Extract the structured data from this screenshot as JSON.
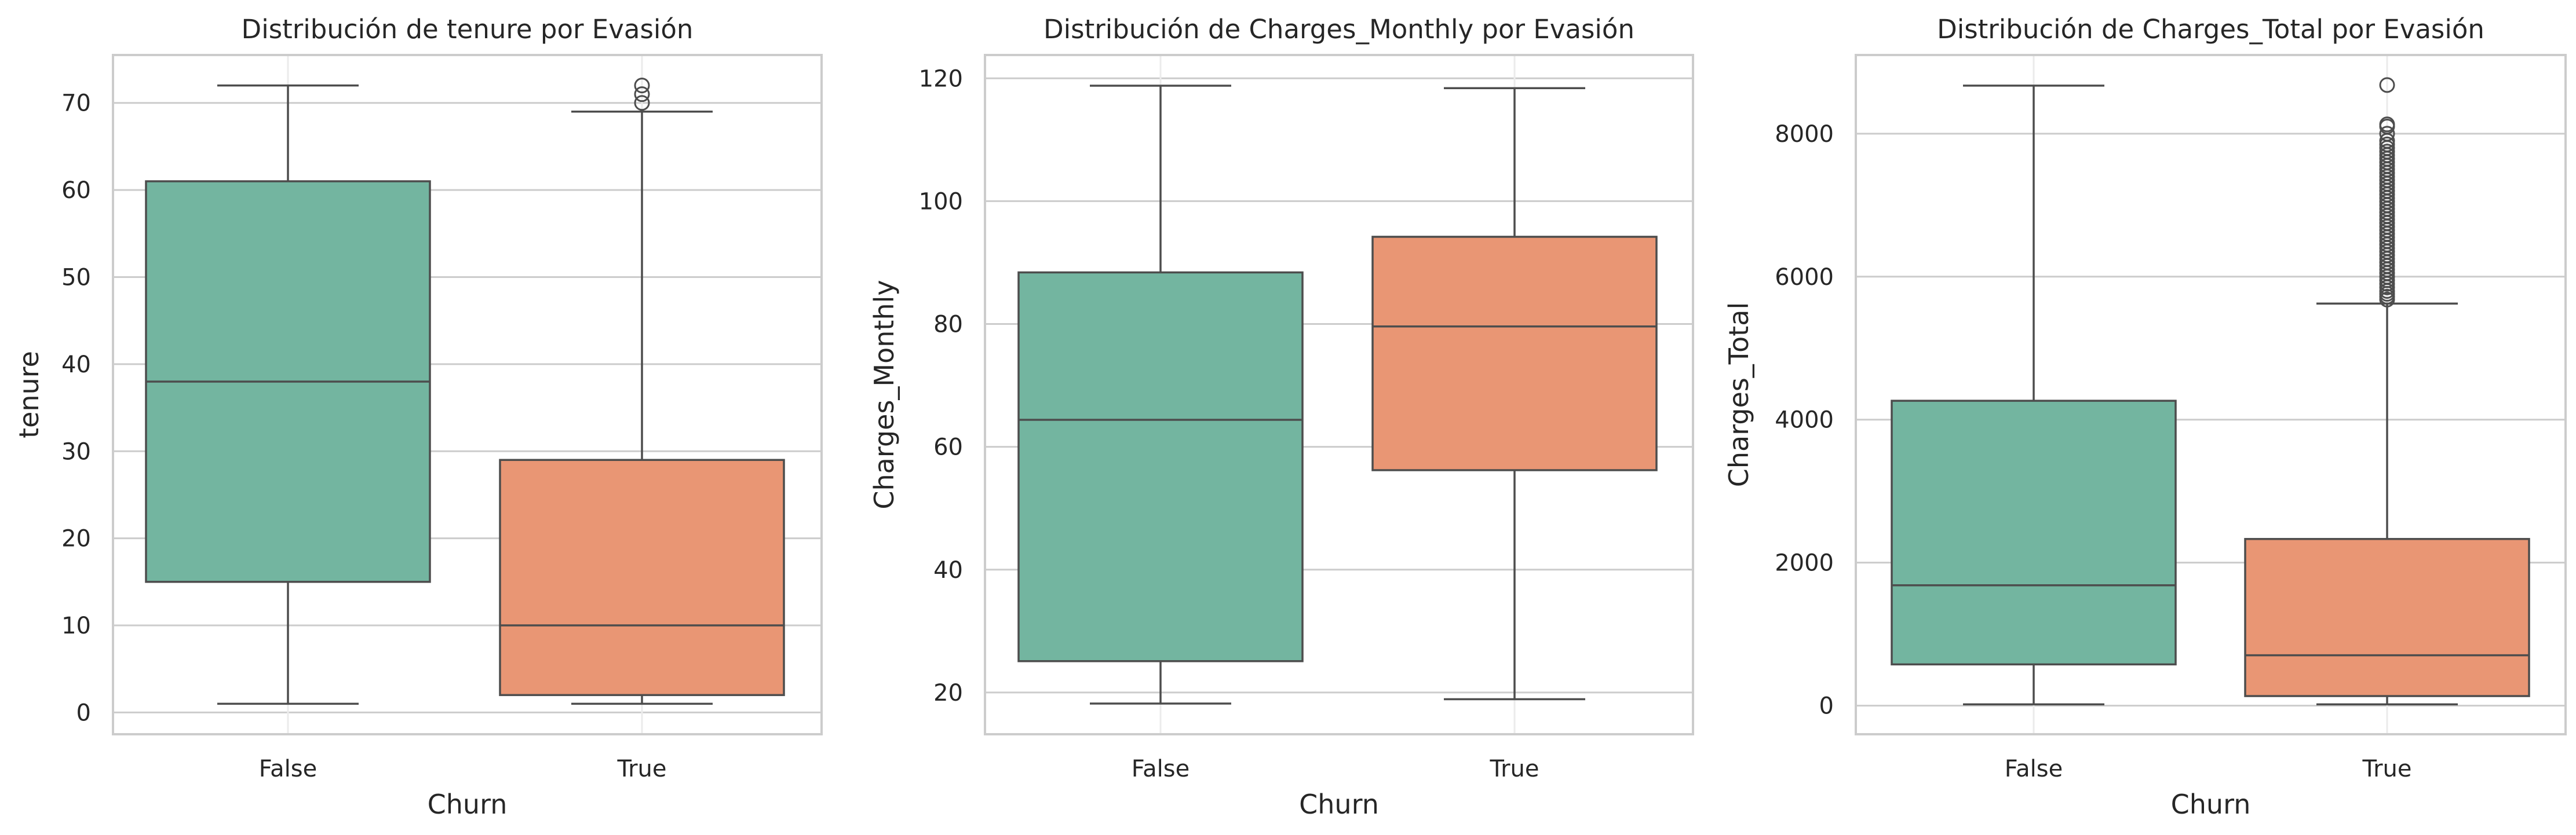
{
  "chart_data": [
    {
      "type": "boxplot",
      "title": "Distribución de tenure por Evasión",
      "xlabel": "Churn",
      "ylabel": "tenure",
      "categories": [
        "False",
        "True"
      ],
      "ylim": [
        -2.5,
        75.5
      ],
      "yticks": [
        0,
        10,
        20,
        30,
        40,
        50,
        60,
        70
      ],
      "grid": "y",
      "colors": [
        "#73b5a0",
        "#e99674"
      ],
      "boxes": [
        {
          "category": "False",
          "whisker_low": 1,
          "q1": 15,
          "median": 38,
          "q3": 61,
          "whisker_high": 72,
          "outliers": []
        },
        {
          "category": "True",
          "whisker_low": 1,
          "q1": 2,
          "median": 10,
          "q3": 29,
          "whisker_high": 69,
          "outliers": [
            70,
            71,
            72
          ]
        }
      ]
    },
    {
      "type": "boxplot",
      "title": "Distribución de Charges_Monthly por Evasión",
      "xlabel": "Churn",
      "ylabel": "Charges_Monthly",
      "categories": [
        "False",
        "True"
      ],
      "ylim": [
        13.2,
        123.8
      ],
      "yticks": [
        20,
        40,
        60,
        80,
        100,
        120
      ],
      "grid": "y",
      "colors": [
        "#73b5a0",
        "#e99674"
      ],
      "boxes": [
        {
          "category": "False",
          "whisker_low": 18.2,
          "q1": 25.1,
          "median": 64.4,
          "q3": 88.4,
          "whisker_high": 118.8,
          "outliers": []
        },
        {
          "category": "True",
          "whisker_low": 18.9,
          "q1": 56.2,
          "median": 79.6,
          "q3": 94.2,
          "whisker_high": 118.4,
          "outliers": []
        }
      ]
    },
    {
      "type": "boxplot",
      "title": "Distribución de Charges_Total por Evasión",
      "xlabel": "Churn",
      "ylabel": "Charges_Total",
      "categories": [
        "False",
        "True"
      ],
      "ylim": [
        -400,
        9100
      ],
      "yticks": [
        0,
        2000,
        4000,
        6000,
        8000
      ],
      "grid": "y",
      "colors": [
        "#73b5a0",
        "#e99674"
      ],
      "boxes": [
        {
          "category": "False",
          "whisker_low": 18,
          "q1": 577,
          "median": 1683,
          "q3": 4264,
          "whisker_high": 8672,
          "outliers": []
        },
        {
          "category": "True",
          "whisker_low": 18,
          "q1": 134,
          "median": 704,
          "q3": 2331,
          "whisker_high": 5624,
          "outliers": [
            5680,
            5720,
            5760,
            5800,
            5850,
            5900,
            5950,
            6000,
            6050,
            6100,
            6150,
            6200,
            6250,
            6300,
            6350,
            6400,
            6450,
            6500,
            6550,
            6600,
            6650,
            6700,
            6750,
            6800,
            6850,
            6900,
            6950,
            7000,
            7050,
            7100,
            7150,
            7200,
            7250,
            7300,
            7350,
            7400,
            7450,
            7500,
            7550,
            7600,
            7650,
            7700,
            7750,
            7800,
            7850,
            7900,
            8000,
            8100,
            8130,
            8680
          ]
        }
      ]
    }
  ]
}
